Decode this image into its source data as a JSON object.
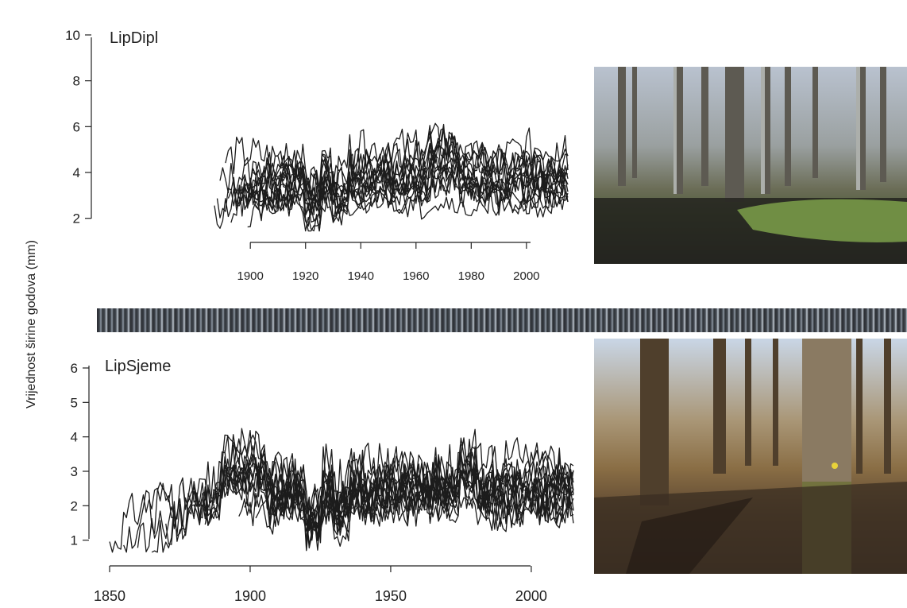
{
  "y_axis_label": "Vrijednost širine godova (mm)",
  "chart_data": [
    {
      "type": "line",
      "title": "LipDipl",
      "xlabel": "",
      "ylabel": "",
      "xlim": [
        1887,
        2015
      ],
      "ylim": [
        1.4,
        10.9
      ],
      "x_ticks": [
        1900,
        1920,
        1940,
        1960,
        1980,
        2000
      ],
      "y_ticks": [
        2,
        4,
        6,
        8,
        10
      ],
      "series": [
        {
          "start": 1887,
          "end": 2015,
          "base": 4.3,
          "early": 2.2,
          "amp": 1.0,
          "seed": 11
        },
        {
          "start": 1888,
          "end": 2015,
          "base": 3.6,
          "early": 2.8,
          "amp": 0.9,
          "seed": 12
        },
        {
          "start": 1889,
          "end": 2014,
          "base": 3.9,
          "early": 3.5,
          "amp": 1.0,
          "seed": 13
        },
        {
          "start": 1891,
          "end": 2015,
          "base": 4.8,
          "early": 4.2,
          "amp": 1.1,
          "seed": 14
        },
        {
          "start": 1892,
          "end": 2015,
          "base": 3.3,
          "early": 3.0,
          "amp": 0.8,
          "seed": 15
        },
        {
          "start": 1893,
          "end": 2015,
          "base": 4.1,
          "early": 2.6,
          "amp": 1.0,
          "seed": 16
        },
        {
          "start": 1894,
          "end": 2015,
          "base": 2.9,
          "early": 3.2,
          "amp": 0.8,
          "seed": 17
        },
        {
          "start": 1895,
          "end": 2014,
          "base": 3.7,
          "early": 2.9,
          "amp": 0.9,
          "seed": 18
        },
        {
          "start": 1896,
          "end": 2015,
          "base": 4.5,
          "early": 2.3,
          "amp": 1.0,
          "seed": 19
        },
        {
          "start": 1897,
          "end": 2015,
          "base": 3.4,
          "early": 2.7,
          "amp": 0.9,
          "seed": 20
        },
        {
          "start": 1898,
          "end": 2015,
          "base": 2.6,
          "early": 3.1,
          "amp": 0.7,
          "seed": 21
        },
        {
          "start": 1899,
          "end": 2015,
          "base": 4.0,
          "early": 2.5,
          "amp": 1.0,
          "seed": 22
        },
        {
          "start": 1900,
          "end": 2015,
          "base": 3.2,
          "early": 2.8,
          "amp": 0.8,
          "seed": 23
        },
        {
          "start": 1901,
          "end": 2015,
          "base": 4.4,
          "early": 3.6,
          "amp": 1.1,
          "seed": 24
        },
        {
          "start": 1902,
          "end": 2015,
          "base": 3.0,
          "early": 2.2,
          "amp": 0.8,
          "seed": 25
        }
      ]
    },
    {
      "type": "line",
      "title": "LipSjeme",
      "xlabel": "",
      "ylabel": "",
      "xlim": [
        1850,
        2015
      ],
      "ylim": [
        0.6,
        6.6
      ],
      "x_ticks": [
        1850,
        1900,
        1950,
        2000
      ],
      "y_ticks": [
        1,
        2,
        3,
        4,
        5,
        6
      ],
      "series": [
        {
          "start": 1850,
          "end": 2015,
          "base": 2.3,
          "early": 0.8,
          "amp": 0.8,
          "seed": 31
        },
        {
          "start": 1855,
          "end": 2015,
          "base": 2.6,
          "early": 0.6,
          "amp": 0.9,
          "seed": 32
        },
        {
          "start": 1860,
          "end": 2015,
          "base": 2.1,
          "early": 1.0,
          "amp": 0.7,
          "seed": 33
        },
        {
          "start": 1865,
          "end": 2015,
          "base": 2.8,
          "early": 0.7,
          "amp": 0.9,
          "seed": 34
        },
        {
          "start": 1870,
          "end": 2015,
          "base": 2.4,
          "early": 0.9,
          "amp": 0.8,
          "seed": 35
        },
        {
          "start": 1876,
          "end": 2015,
          "base": 2.2,
          "early": 2.0,
          "amp": 0.8,
          "seed": 36
        },
        {
          "start": 1880,
          "end": 2015,
          "base": 2.9,
          "early": 1.5,
          "amp": 1.0,
          "seed": 37
        },
        {
          "start": 1884,
          "end": 2015,
          "base": 2.5,
          "early": 1.8,
          "amp": 0.9,
          "seed": 38
        },
        {
          "start": 1887,
          "end": 2015,
          "base": 2.0,
          "early": 2.4,
          "amp": 0.7,
          "seed": 39
        },
        {
          "start": 1889,
          "end": 2015,
          "base": 2.7,
          "early": 2.8,
          "amp": 0.9,
          "seed": 40
        },
        {
          "start": 1891,
          "end": 2015,
          "base": 2.3,
          "early": 2.1,
          "amp": 0.8,
          "seed": 41
        },
        {
          "start": 1893,
          "end": 2015,
          "base": 3.0,
          "early": 1.6,
          "amp": 1.0,
          "seed": 42
        },
        {
          "start": 1896,
          "end": 2015,
          "base": 2.1,
          "early": 1.2,
          "amp": 0.7,
          "seed": 43
        },
        {
          "start": 1898,
          "end": 2015,
          "base": 2.6,
          "early": 1.4,
          "amp": 0.9,
          "seed": 44
        },
        {
          "start": 1902,
          "end": 2015,
          "base": 2.4,
          "early": 1.0,
          "amp": 0.8,
          "seed": 45
        }
      ]
    }
  ],
  "photos": [
    {
      "name": "flooded-forest-photo",
      "subject": "flooded lowland oak forest"
    },
    {
      "name": "seed-stand-forest-photo",
      "subject": "oak seed stand forest floor"
    }
  ],
  "core_strip": {
    "name": "tree-core-image"
  }
}
